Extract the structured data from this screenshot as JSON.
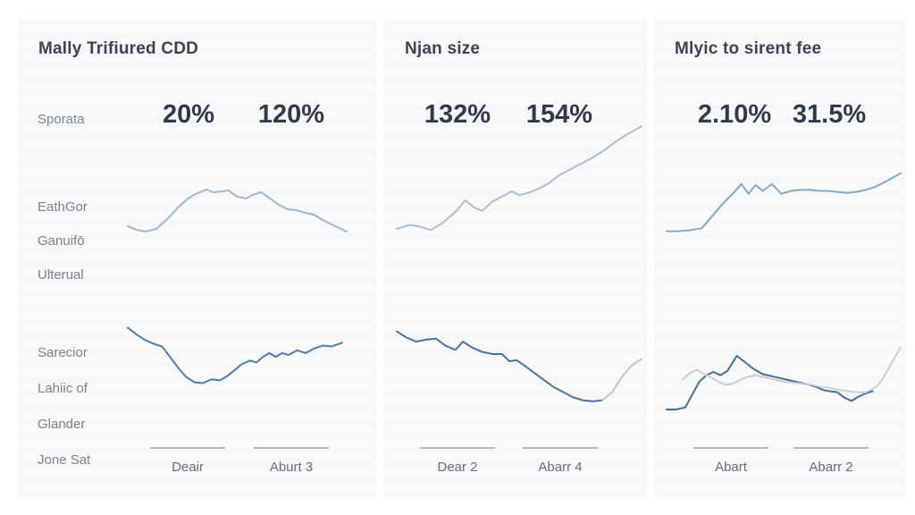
{
  "panels": [
    {
      "title": "Mally Trifiured CDD",
      "row_label": "Sporata",
      "stats": [
        "20%",
        "120%"
      ],
      "side_labels_upper": [
        "EathGor",
        "Ganuifō",
        "Ulterual"
      ],
      "side_labels_lower": [
        "Sarecior",
        "Lahiic of",
        "Glander",
        "Jone Sat"
      ],
      "x_labels": [
        "Deair",
        "Aburt 3"
      ]
    },
    {
      "title": "Njan size",
      "stats": [
        "132%",
        "154%"
      ],
      "x_labels": [
        "Dear 2",
        "Abarr 4"
      ]
    },
    {
      "title": "Mlyic to sirent fee",
      "stats": [
        "2.10%",
        "31.5%"
      ],
      "x_labels": [
        "Abart",
        "Abarr 2"
      ]
    }
  ],
  "colors": {
    "panel_bg": "#f7f8f9",
    "title": "#3b4454",
    "stat": "#2d3a50",
    "label": "#7b8390",
    "axis_label": "#666e7a",
    "axis_line": "#b7bdc4"
  },
  "chart_data": [
    {
      "panel": 0,
      "position": "upper",
      "type": "line",
      "title": "",
      "xlabel": "",
      "ylabel": "",
      "x_range": [
        0,
        100
      ],
      "y_range": [
        0,
        100
      ],
      "note": "no axes or tick labels visible; values are relative 0-100 estimates",
      "series": [
        {
          "name": "trend",
          "color": "#9db9ce",
          "points": [
            [
              0,
              37
            ],
            [
              4,
              33
            ],
            [
              8,
              31
            ],
            [
              13,
              34
            ],
            [
              18,
              45
            ],
            [
              23,
              58
            ],
            [
              27,
              67
            ],
            [
              31,
              73
            ],
            [
              36,
              78
            ],
            [
              39,
              75
            ],
            [
              43,
              76
            ],
            [
              46,
              77
            ],
            [
              50,
              70
            ],
            [
              54,
              68
            ],
            [
              57,
              72
            ],
            [
              61,
              75
            ],
            [
              65,
              68
            ],
            [
              69,
              61
            ],
            [
              73,
              56
            ],
            [
              77,
              55
            ],
            [
              81,
              52
            ],
            [
              85,
              50
            ],
            [
              89,
              44
            ],
            [
              94,
              38
            ],
            [
              100,
              31
            ]
          ]
        }
      ]
    },
    {
      "panel": 0,
      "position": "lower",
      "type": "line",
      "x_range": [
        0,
        100
      ],
      "y_range": [
        0,
        100
      ],
      "series": [
        {
          "name": "trend",
          "color": "#4c7dab",
          "points": [
            [
              0,
              89
            ],
            [
              4,
              82
            ],
            [
              8,
              76
            ],
            [
              12,
              72
            ],
            [
              16,
              69
            ],
            [
              20,
              57
            ],
            [
              24,
              45
            ],
            [
              27,
              37
            ],
            [
              31,
              31
            ],
            [
              35,
              30
            ],
            [
              39,
              34
            ],
            [
              43,
              33
            ],
            [
              46,
              37
            ],
            [
              50,
              44
            ],
            [
              53,
              50
            ],
            [
              57,
              54
            ],
            [
              60,
              52
            ],
            [
              63,
              58
            ],
            [
              66,
              62
            ],
            [
              69,
              58
            ],
            [
              72,
              62
            ],
            [
              75,
              60
            ],
            [
              79,
              65
            ],
            [
              83,
              62
            ],
            [
              87,
              67
            ],
            [
              91,
              70
            ],
            [
              95,
              69
            ],
            [
              100,
              73
            ]
          ]
        }
      ]
    },
    {
      "panel": 1,
      "position": "upper",
      "type": "line",
      "x_range": [
        0,
        100
      ],
      "y_range": [
        0,
        100
      ],
      "series": [
        {
          "name": "trend",
          "color": "#a9c0cf",
          "points": [
            [
              0,
              20
            ],
            [
              5,
              23
            ],
            [
              9,
              22
            ],
            [
              14,
              19
            ],
            [
              19,
              25
            ],
            [
              24,
              33
            ],
            [
              28,
              42
            ],
            [
              32,
              36
            ],
            [
              35,
              34
            ],
            [
              39,
              41
            ],
            [
              43,
              45
            ],
            [
              47,
              49
            ],
            [
              50,
              46
            ],
            [
              54,
              48
            ],
            [
              58,
              51
            ],
            [
              62,
              55
            ],
            [
              66,
              61
            ],
            [
              71,
              66
            ],
            [
              75,
              70
            ],
            [
              80,
              75
            ],
            [
              85,
              81
            ],
            [
              90,
              88
            ],
            [
              95,
              94
            ],
            [
              100,
              99
            ]
          ]
        }
      ]
    },
    {
      "panel": 1,
      "position": "lower",
      "type": "line",
      "x_range": [
        0,
        100
      ],
      "y_range": [
        0,
        100
      ],
      "series": [
        {
          "name": "trend-main",
          "color": "#4a749f",
          "points": [
            [
              0,
              89
            ],
            [
              4,
              83
            ],
            [
              8,
              79
            ],
            [
              12,
              81
            ],
            [
              16,
              82
            ],
            [
              20,
              75
            ],
            [
              24,
              71
            ],
            [
              27,
              79
            ],
            [
              31,
              73
            ],
            [
              35,
              69
            ],
            [
              39,
              67
            ],
            [
              43,
              67
            ],
            [
              46,
              60
            ],
            [
              49,
              61
            ],
            [
              52,
              56
            ],
            [
              56,
              49
            ],
            [
              60,
              42
            ],
            [
              64,
              35
            ],
            [
              68,
              30
            ],
            [
              72,
              25
            ],
            [
              76,
              22
            ],
            [
              80,
              21
            ],
            [
              84,
              22
            ]
          ]
        },
        {
          "name": "trend-tail",
          "color": "#bdc8c8",
          "points": [
            [
              84,
              22
            ],
            [
              88,
              30
            ],
            [
              92,
              45
            ],
            [
              96,
              56
            ],
            [
              100,
              62
            ]
          ]
        }
      ]
    },
    {
      "panel": 2,
      "position": "upper",
      "type": "line",
      "x_range": [
        0,
        100
      ],
      "y_range": [
        0,
        100
      ],
      "series": [
        {
          "name": "trend",
          "color": "#84a8c3",
          "points": [
            [
              0,
              24
            ],
            [
              5,
              24
            ],
            [
              10,
              25
            ],
            [
              15,
              27
            ],
            [
              19,
              38
            ],
            [
              24,
              52
            ],
            [
              29,
              64
            ],
            [
              32,
              72
            ],
            [
              35,
              62
            ],
            [
              38,
              71
            ],
            [
              41,
              65
            ],
            [
              45,
              72
            ],
            [
              49,
              62
            ],
            [
              53,
              65
            ],
            [
              57,
              66
            ],
            [
              61,
              66
            ],
            [
              65,
              65
            ],
            [
              69,
              65
            ],
            [
              73,
              64
            ],
            [
              77,
              63
            ],
            [
              81,
              64
            ],
            [
              85,
              66
            ],
            [
              89,
              69
            ],
            [
              94,
              75
            ],
            [
              100,
              83
            ]
          ]
        }
      ]
    },
    {
      "panel": 2,
      "position": "lower",
      "type": "line",
      "x_range": [
        0,
        100
      ],
      "y_range": [
        0,
        100
      ],
      "series": [
        {
          "name": "trend-dark",
          "color": "#3d6f9f",
          "points": [
            [
              0,
              20
            ],
            [
              4,
              20
            ],
            [
              8,
              22
            ],
            [
              11,
              34
            ],
            [
              14,
              46
            ],
            [
              17,
              52
            ],
            [
              20,
              55
            ],
            [
              23,
              52
            ],
            [
              26,
              56
            ],
            [
              30,
              70
            ],
            [
              33,
              65
            ],
            [
              37,
              58
            ],
            [
              41,
              53
            ],
            [
              45,
              51
            ],
            [
              49,
              49
            ],
            [
              53,
              47
            ],
            [
              57,
              45
            ],
            [
              61,
              43
            ],
            [
              64,
              41
            ],
            [
              67,
              38
            ],
            [
              70,
              37
            ],
            [
              73,
              36
            ],
            [
              76,
              31
            ],
            [
              79,
              28
            ],
            [
              82,
              32
            ],
            [
              85,
              35
            ],
            [
              88,
              37
            ]
          ]
        },
        {
          "name": "trend-light",
          "color": "#c9cfd5",
          "points": [
            [
              7,
              48
            ],
            [
              10,
              54
            ],
            [
              13,
              57
            ],
            [
              16,
              53
            ],
            [
              19,
              50
            ],
            [
              22,
              46
            ],
            [
              25,
              43
            ],
            [
              28,
              44
            ],
            [
              31,
              47
            ],
            [
              34,
              50
            ],
            [
              38,
              52
            ],
            [
              42,
              50
            ],
            [
              46,
              48
            ],
            [
              50,
              46
            ],
            [
              54,
              45
            ],
            [
              58,
              44
            ],
            [
              62,
              43
            ],
            [
              66,
              41
            ],
            [
              70,
              40
            ],
            [
              74,
              38
            ],
            [
              78,
              37
            ],
            [
              82,
              36
            ],
            [
              85,
              36
            ],
            [
              88,
              39
            ],
            [
              91,
              44
            ],
            [
              94,
              55
            ],
            [
              97,
              67
            ],
            [
              100,
              78
            ]
          ]
        }
      ]
    }
  ]
}
